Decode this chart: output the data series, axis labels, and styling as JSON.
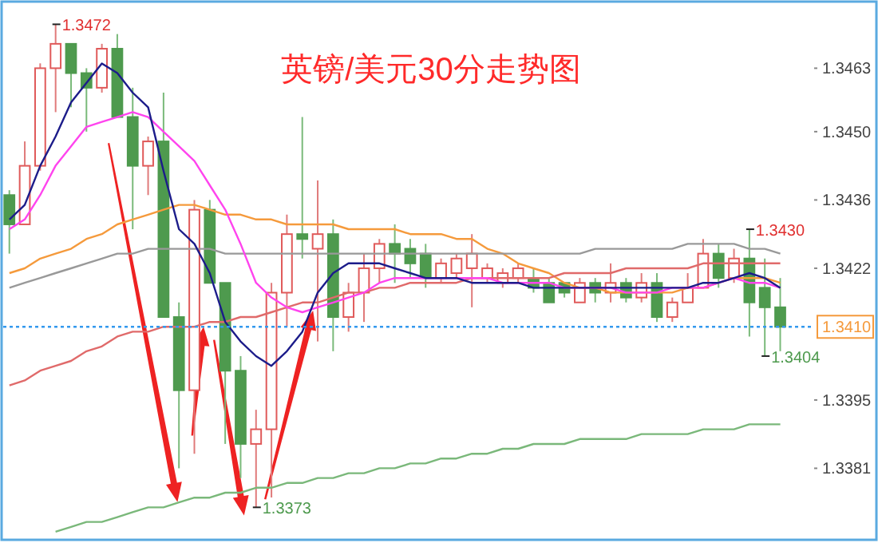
{
  "chart_data": {
    "type": "candlestick",
    "title": "英镑/美元30分走势图",
    "categories": [
      null,
      null,
      null,
      null,
      null,
      null,
      null,
      null,
      null,
      null,
      null,
      null,
      null,
      null,
      null,
      null,
      null,
      null,
      null,
      null,
      null,
      null,
      null,
      null,
      null,
      null,
      null,
      null,
      null,
      null,
      null,
      null,
      null,
      null,
      null,
      null,
      null,
      null,
      null,
      null,
      null,
      null,
      null,
      null,
      null,
      null,
      null,
      null,
      null,
      null,
      null
    ],
    "ohlc": [
      [
        1.3437,
        1.3438,
        1.3425,
        1.3431
      ],
      [
        1.3431,
        1.3448,
        1.3431,
        1.3443
      ],
      [
        1.3443,
        1.3464,
        1.3442,
        1.3463
      ],
      [
        1.3463,
        1.3472,
        1.3454,
        1.3468
      ],
      [
        1.3468,
        1.3468,
        1.3455,
        1.3462
      ],
      [
        1.3462,
        1.3463,
        1.345,
        1.3459
      ],
      [
        1.3459,
        1.3468,
        1.3458,
        1.3467
      ],
      [
        1.3467,
        1.347,
        1.3453,
        1.3453
      ],
      [
        1.3453,
        1.3459,
        1.343,
        1.3443
      ],
      [
        1.3443,
        1.3449,
        1.3437,
        1.3448
      ],
      [
        1.3448,
        1.3458,
        1.3412,
        1.3412
      ],
      [
        1.3412,
        1.3415,
        1.3381,
        1.3397
      ],
      [
        1.3397,
        1.3436,
        1.3384,
        1.3434
      ],
      [
        1.3434,
        1.3436,
        1.3419,
        1.3419
      ],
      [
        1.3419,
        1.3419,
        1.3386,
        1.3401
      ],
      [
        1.3401,
        1.3404,
        1.3379,
        1.3386
      ],
      [
        1.3386,
        1.3393,
        1.3373,
        1.3389
      ],
      [
        1.3389,
        1.3419,
        1.3375,
        1.3417
      ],
      [
        1.3417,
        1.3433,
        1.341,
        1.3429
      ],
      [
        1.3429,
        1.3453,
        1.3424,
        1.3428
      ],
      [
        1.3426,
        1.344,
        1.3407,
        1.3429
      ],
      [
        1.3429,
        1.3432,
        1.3405,
        1.3412
      ],
      [
        1.3412,
        1.3419,
        1.3409,
        1.3417
      ],
      [
        1.3417,
        1.3425,
        1.3411,
        1.3422
      ],
      [
        1.3422,
        1.3428,
        1.3419,
        1.3427
      ],
      [
        1.3427,
        1.3431,
        1.3419,
        1.3425
      ],
      [
        1.3426,
        1.3428,
        1.342,
        1.3423
      ],
      [
        1.3425,
        1.3427,
        1.3418,
        1.342
      ],
      [
        1.342,
        1.3424,
        1.3419,
        1.3423
      ],
      [
        1.3421,
        1.3425,
        1.342,
        1.3424
      ],
      [
        1.3422,
        1.3429,
        1.3414,
        1.3425
      ],
      [
        1.342,
        1.3423,
        1.3419,
        1.3422
      ],
      [
        1.3419,
        1.3422,
        1.3418,
        1.3421
      ],
      [
        1.342,
        1.3423,
        1.3419,
        1.3422
      ],
      [
        1.342,
        1.3422,
        1.3417,
        1.3418
      ],
      [
        1.3419,
        1.342,
        1.3415,
        1.3415
      ],
      [
        1.3419,
        1.3419,
        1.3416,
        1.3417
      ],
      [
        1.3415,
        1.342,
        1.3415,
        1.3419
      ],
      [
        1.3419,
        1.342,
        1.3415,
        1.3417
      ],
      [
        1.3417,
        1.3423,
        1.3415,
        1.3419
      ],
      [
        1.3419,
        1.342,
        1.3415,
        1.3416
      ],
      [
        1.3416,
        1.3421,
        1.3415,
        1.3419
      ],
      [
        1.3419,
        1.3421,
        1.3411,
        1.3412
      ],
      [
        1.3412,
        1.3416,
        1.3411,
        1.3415
      ],
      [
        1.3415,
        1.3421,
        1.3415,
        1.3418
      ],
      [
        1.3418,
        1.3428,
        1.3418,
        1.3425
      ],
      [
        1.3425,
        1.3427,
        1.3418,
        1.342
      ],
      [
        1.342,
        1.3426,
        1.3419,
        1.3424
      ],
      [
        1.3424,
        1.343,
        1.3408,
        1.3415
      ],
      [
        1.3418,
        1.3424,
        1.3404,
        1.3414
      ],
      [
        1.3414,
        1.342,
        1.3405,
        1.341
      ]
    ],
    "series": [
      {
        "type": "line",
        "color": "#f59a3c",
        "values": [
          1.3421,
          1.3422,
          1.3424,
          1.3425,
          1.3426,
          1.3428,
          1.3429,
          1.3431,
          1.3432,
          1.3433,
          1.3434,
          1.3435,
          1.3435,
          1.3434,
          1.3433,
          1.3433,
          1.3432,
          1.3432,
          1.3431,
          1.3431,
          1.3431,
          1.3431,
          1.343,
          1.343,
          1.343,
          1.343,
          1.3429,
          1.3429,
          1.3429,
          1.3428,
          1.3428,
          1.3426,
          1.3425,
          1.3423,
          1.3422,
          1.3421,
          1.3419,
          1.3418,
          1.3418,
          1.3417,
          1.3417,
          1.3417,
          1.3417,
          1.3417,
          1.3418,
          1.3418,
          1.3419,
          1.342,
          1.342,
          1.342,
          1.3419
        ]
      },
      {
        "type": "line",
        "color": "#999999",
        "values": [
          1.3418,
          1.3419,
          1.342,
          1.3421,
          1.3422,
          1.3423,
          1.3424,
          1.3425,
          1.3425,
          1.3426,
          1.3426,
          1.3426,
          1.3426,
          1.3426,
          1.3425,
          1.3425,
          1.3425,
          1.3425,
          1.3425,
          1.3425,
          1.3425,
          1.3425,
          1.3425,
          1.3425,
          1.3425,
          1.3425,
          1.3425,
          1.3425,
          1.3425,
          1.3425,
          1.3425,
          1.3425,
          1.3425,
          1.3425,
          1.3425,
          1.3425,
          1.3425,
          1.3425,
          1.3426,
          1.3426,
          1.3426,
          1.3426,
          1.3426,
          1.3426,
          1.3427,
          1.3427,
          1.3427,
          1.3427,
          1.3426,
          1.3426,
          1.3425
        ]
      },
      {
        "type": "line",
        "color": "#e06a6a",
        "values": [
          1.3398,
          1.3399,
          1.3401,
          1.3402,
          1.3403,
          1.3405,
          1.3406,
          1.3408,
          1.3409,
          1.3409,
          1.341,
          1.341,
          1.341,
          1.3411,
          1.3411,
          1.3412,
          1.3412,
          1.3413,
          1.3414,
          1.3415,
          1.3415,
          1.3416,
          1.3417,
          1.3417,
          1.3418,
          1.3418,
          1.3419,
          1.3419,
          1.3419,
          1.3419,
          1.342,
          1.342,
          1.342,
          1.342,
          1.342,
          1.342,
          1.3421,
          1.3421,
          1.3421,
          1.3421,
          1.3422,
          1.3422,
          1.3422,
          1.3422,
          1.3422,
          1.3423,
          1.3423,
          1.3423,
          1.3423,
          1.3423,
          1.3423
        ]
      },
      {
        "type": "line",
        "color": "#7ab87a",
        "values": [
          null,
          null,
          null,
          1.3368,
          1.3369,
          1.337,
          1.337,
          1.3371,
          1.3372,
          1.3373,
          1.3373,
          1.3374,
          1.3375,
          1.3375,
          1.3376,
          1.3376,
          1.3377,
          1.3377,
          1.3378,
          1.3378,
          1.3379,
          1.3379,
          1.338,
          1.338,
          1.3381,
          1.3381,
          1.3382,
          1.3382,
          1.3383,
          1.3383,
          1.3384,
          1.3384,
          1.3385,
          1.3385,
          1.3386,
          1.3386,
          1.3386,
          1.3387,
          1.3387,
          1.3387,
          1.3387,
          1.3388,
          1.3388,
          1.3388,
          1.3388,
          1.3389,
          1.3389,
          1.3389,
          1.339,
          1.339,
          1.339
        ]
      },
      {
        "type": "line",
        "color": "#ff44ee",
        "values": [
          1.343,
          1.3432,
          1.3437,
          1.3443,
          1.3447,
          1.3451,
          1.3452,
          1.3453,
          1.3454,
          1.3453,
          1.345,
          1.3447,
          1.3444,
          1.3439,
          1.3434,
          1.3427,
          1.3419,
          1.3416,
          1.3414,
          1.3413,
          1.3414,
          1.3415,
          1.3416,
          1.3417,
          1.3419,
          1.342,
          1.342,
          1.342,
          1.342,
          1.342,
          1.342,
          1.342,
          1.3419,
          1.3419,
          1.3419,
          1.3419,
          1.3418,
          1.3418,
          1.3418,
          1.3418,
          1.3417,
          1.3417,
          1.3417,
          1.3418,
          1.3418,
          1.3418,
          1.3419,
          1.342,
          1.3419,
          1.3419,
          1.3418
        ]
      },
      {
        "type": "line",
        "color": "#1c1c8a",
        "values": [
          1.3432,
          1.3435,
          1.3443,
          1.3449,
          1.3456,
          1.346,
          1.3464,
          1.3462,
          1.3458,
          1.3455,
          1.3442,
          1.343,
          1.3427,
          1.3421,
          1.3411,
          1.3407,
          1.3404,
          1.3402,
          1.3405,
          1.3409,
          1.3417,
          1.3421,
          1.3423,
          1.3423,
          1.3423,
          1.3422,
          1.3421,
          1.342,
          1.342,
          1.342,
          1.3419,
          1.3419,
          1.3419,
          1.3419,
          1.3418,
          1.3418,
          1.3418,
          1.3418,
          1.3418,
          1.3418,
          1.3418,
          1.3418,
          1.3418,
          1.3418,
          1.3418,
          1.3419,
          1.3419,
          1.342,
          1.3421,
          1.342,
          1.3418
        ]
      }
    ],
    "ylim": [
      1.3367,
      1.3476
    ],
    "yticks": [
      1.3463,
      {
        "value": 1.345,
        "label": "1.3450"
      },
      1.3436,
      1.3422,
      1.3395,
      1.3381
    ],
    "ref_lines": [
      {
        "axis": "y",
        "value": 1.341,
        "label": "1.3410",
        "color": "#3399ee",
        "line_style": "dotted"
      }
    ],
    "annotations": [
      "1.3472",
      "1.3430",
      "1.3373",
      "1.3404"
    ]
  }
}
